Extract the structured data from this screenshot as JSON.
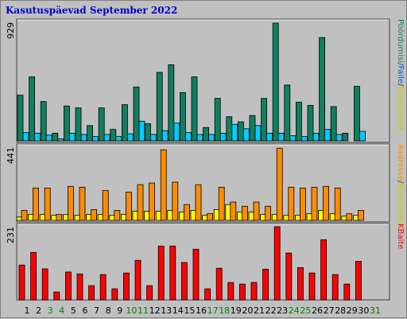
{
  "title": "Kasutuspäevad September 2022",
  "chart_data": [
    {
      "type": "bar",
      "panel": "top",
      "ymax_label": "929",
      "ylim": [
        0,
        929
      ],
      "categories": [
        "1",
        "2",
        "3",
        "4",
        "5",
        "6",
        "7",
        "8",
        "9",
        "10",
        "11",
        "12",
        "13",
        "14",
        "15",
        "16",
        "17",
        "18",
        "19",
        "20",
        "21",
        "22",
        "23",
        "24",
        "25",
        "26",
        "27",
        "28",
        "29",
        "30",
        "31"
      ],
      "weekend_days": [
        "3",
        "4",
        "10",
        "11",
        "17",
        "18",
        "24",
        "25",
        "31"
      ],
      "series": [
        {
          "name": "Pöördumisi",
          "color": "#0f7f5f",
          "values": [
            360,
            505,
            310,
            60,
            275,
            260,
            120,
            260,
            90,
            285,
            425,
            135,
            540,
            600,
            380,
            505,
            105,
            335,
            190,
            150,
            200,
            335,
            929,
            440,
            305,
            280,
            815,
            270,
            60,
            430,
            0
          ]
        },
        {
          "name": "Faile",
          "color": "#00ccff",
          "values": [
            65,
            60,
            45,
            15,
            60,
            50,
            35,
            50,
            35,
            55,
            155,
            50,
            80,
            140,
            65,
            50,
            50,
            60,
            130,
            95,
            120,
            60,
            60,
            40,
            35,
            60,
            90,
            50,
            0,
            75,
            0
          ]
        }
      ],
      "right_labels": [
        {
          "text": "Pöördumisi",
          "color": "#0f7f5f"
        },
        {
          "text": "/",
          "color": "#404040"
        },
        {
          "text": "Faile",
          "color": "#0066cc"
        },
        {
          "text": "/",
          "color": "#404040"
        },
        {
          "text": "Külastajaid",
          "color": "#cccc00"
        }
      ]
    },
    {
      "type": "bar",
      "panel": "middle",
      "ymax_label": "441",
      "ylim": [
        0,
        441
      ],
      "series": [
        {
          "name": "Külastajaid",
          "color": "#ffff00",
          "values": [
            20,
            35,
            35,
            30,
            35,
            30,
            35,
            35,
            30,
            35,
            55,
            55,
            55,
            60,
            50,
            60,
            30,
            65,
            95,
            50,
            50,
            35,
            35,
            30,
            30,
            40,
            60,
            40,
            25,
            30,
            0
          ]
        },
        {
          "name": "Aadresse",
          "color": "#ff8c00",
          "values": [
            60,
            195,
            195,
            35,
            205,
            200,
            65,
            180,
            60,
            170,
            215,
            225,
            425,
            230,
            95,
            215,
            40,
            200,
            110,
            85,
            110,
            85,
            435,
            200,
            195,
            200,
            205,
            195,
            40,
            60,
            0
          ]
        }
      ],
      "right_labels": [
        {
          "text": "Aadresse",
          "color": "#ff8c00"
        },
        {
          "text": "/",
          "color": "#404040"
        },
        {
          "text": "Külastajaid",
          "color": "#cccc00"
        }
      ]
    },
    {
      "type": "bar",
      "panel": "bottom",
      "ymax_label": "231",
      "ylim": [
        0,
        231
      ],
      "series": [
        {
          "name": "KBaite",
          "color": "#ff0000",
          "values": [
            110,
            150,
            98,
            25,
            88,
            82,
            45,
            80,
            35,
            85,
            125,
            45,
            170,
            170,
            118,
            160,
            35,
            100,
            55,
            50,
            55,
            97,
            231,
            148,
            102,
            85,
            190,
            80,
            50,
            122,
            0
          ]
        }
      ],
      "right_labels": [
        {
          "text": "KBaite",
          "color": "#ff0000"
        }
      ]
    }
  ]
}
